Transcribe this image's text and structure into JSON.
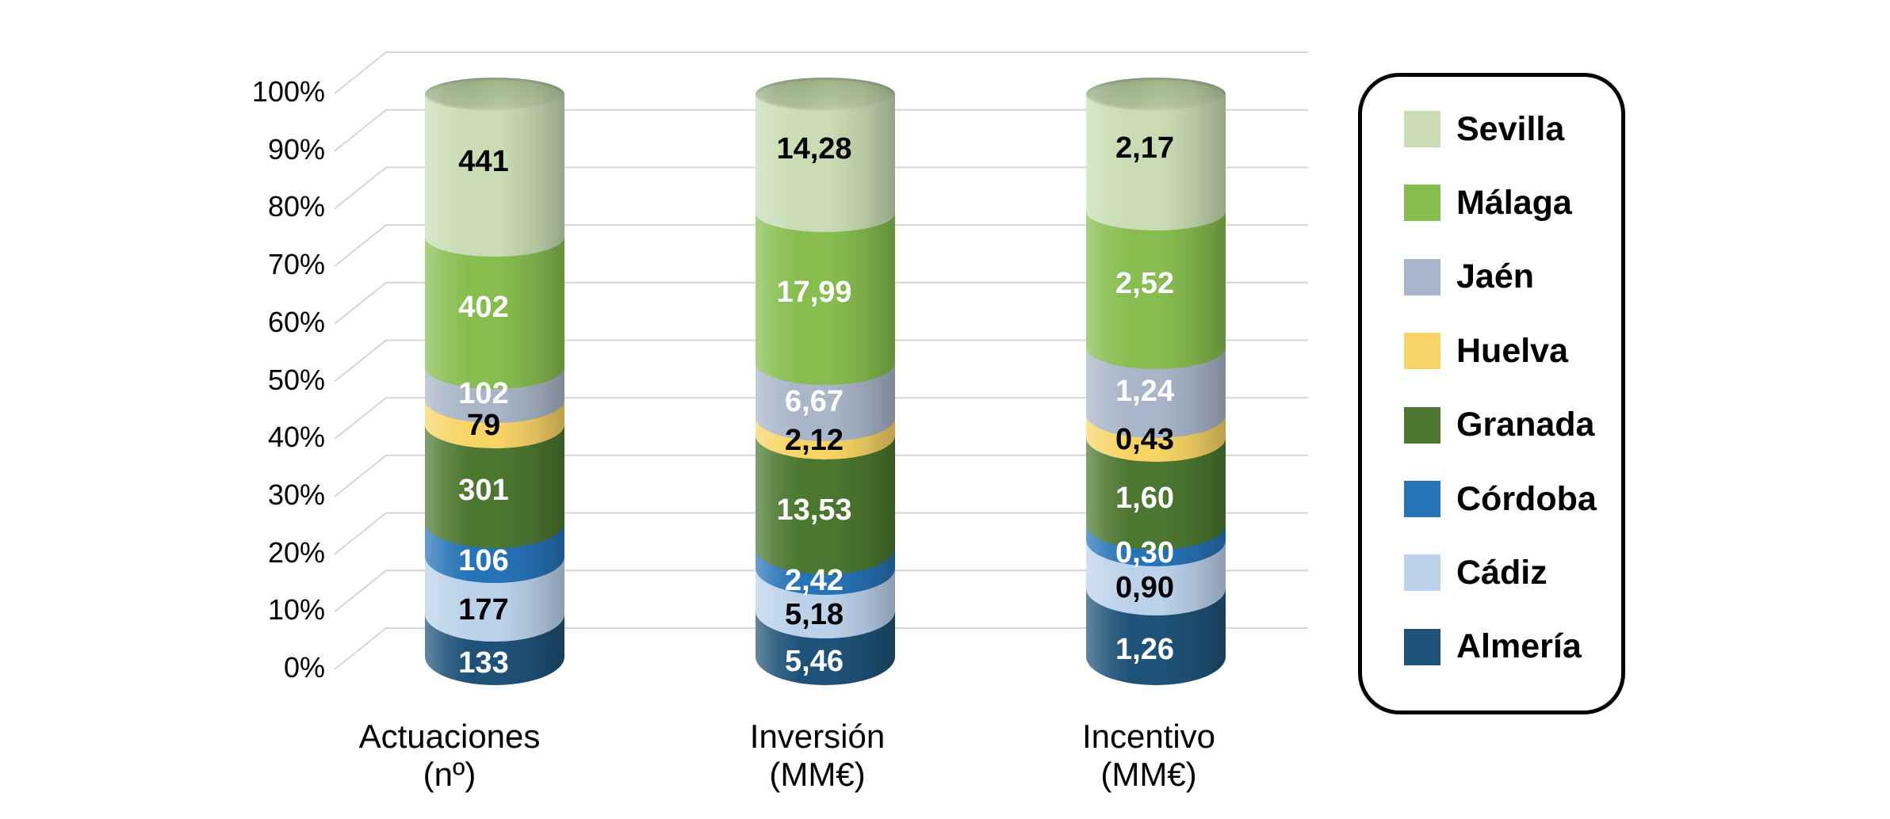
{
  "chart_data": {
    "type": "bar",
    "subtype": "stacked-cylinder-100-percent",
    "title": "",
    "categories": [
      {
        "id": "actuaciones",
        "label_line1": "Actuaciones",
        "label_line2": "(nº)"
      },
      {
        "id": "inversion",
        "label_line1": "Inversión",
        "label_line2": "(MM€)"
      },
      {
        "id": "incentivo",
        "label_line1": "Incentivo",
        "label_line2": "(MM€)"
      }
    ],
    "y_axis": {
      "ticks": [
        "100%",
        "90%",
        "80%",
        "70%",
        "60%",
        "50%",
        "40%",
        "30%",
        "20%",
        "10%",
        "0%"
      ],
      "min": 0,
      "max": 100,
      "unit": "%",
      "grid": true
    },
    "series": [
      {
        "name": "Sevilla",
        "color": "#c9dcb4",
        "label_text_color": "#000000",
        "values": [
          441,
          14.28,
          2.17
        ],
        "display": [
          "441",
          "14,28",
          "2,17"
        ]
      },
      {
        "name": "Málaga",
        "color": "#86bd4e",
        "label_text_color": "#ffffff",
        "values": [
          402,
          17.99,
          2.52
        ],
        "display": [
          "402",
          "17,99",
          "2,52"
        ]
      },
      {
        "name": "Jaén",
        "color": "#a9b5c8",
        "label_text_color": "#ffffff",
        "values": [
          102,
          6.67,
          1.24
        ],
        "display": [
          "102",
          "6,67",
          "1,24"
        ]
      },
      {
        "name": "Huelva",
        "color": "#f8d466",
        "label_text_color": "#000000",
        "values": [
          79,
          2.12,
          0.43
        ],
        "display": [
          "79",
          "2,12",
          "0,43"
        ]
      },
      {
        "name": "Granada",
        "color": "#4c7730",
        "label_text_color": "#ffffff",
        "values": [
          301,
          13.53,
          1.6
        ],
        "display": [
          "301",
          "13,53",
          "1,60"
        ]
      },
      {
        "name": "Córdoba",
        "color": "#2673b8",
        "label_text_color": "#ffffff",
        "values": [
          106,
          2.42,
          0.3
        ],
        "display": [
          "106",
          "2,42",
          "0,30"
        ]
      },
      {
        "name": "Cádiz",
        "color": "#bcd2ea",
        "label_text_color": "#000000",
        "values": [
          177,
          5.18,
          0.9
        ],
        "display": [
          "177",
          "5,18",
          "0,90"
        ]
      },
      {
        "name": "Almería",
        "color": "#1f5278",
        "label_text_color": "#ffffff",
        "values": [
          133,
          5.46,
          1.26
        ],
        "display": [
          "133",
          "5,46",
          "1,26"
        ]
      }
    ],
    "legend_position": "right",
    "gridline_color": "#d5d5d5",
    "background_color": "#ffffff"
  }
}
